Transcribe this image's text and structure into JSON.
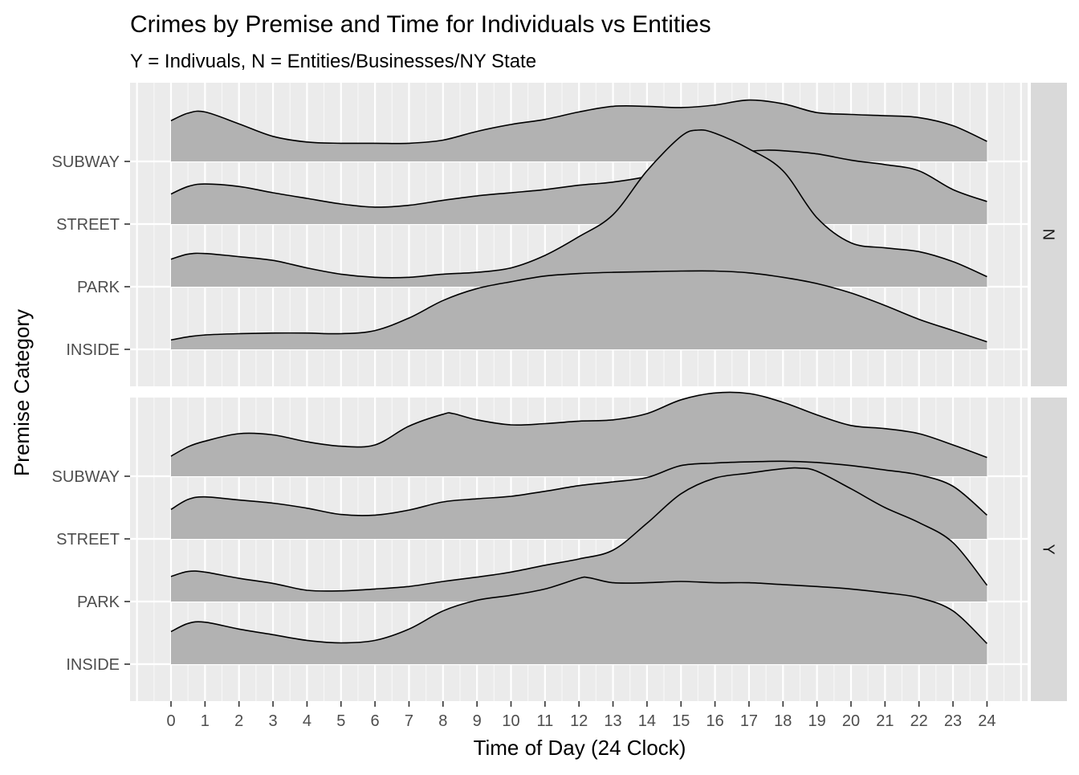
{
  "chart_data": {
    "type": "area",
    "subtype": "ridgeline",
    "title": "Crimes by Premise and Time for Individuals vs Entities",
    "subtitle": "Y = Indivuals, N = Entities/Businesses/NY State",
    "xlabel": "Time of Day (24 Clock)",
    "ylabel": "Premise Category",
    "xlim": [
      0,
      24
    ],
    "x_ticks": [
      0,
      1,
      2,
      3,
      4,
      5,
      6,
      7,
      8,
      9,
      10,
      11,
      12,
      13,
      14,
      15,
      16,
      17,
      18,
      19,
      20,
      21,
      22,
      23,
      24
    ],
    "categories": [
      "INSIDE",
      "PARK",
      "STREET",
      "SUBWAY"
    ],
    "fill_color": "#b2b2b2",
    "panel_background": "#ebebeb",
    "strip_background": "#d9d9d9",
    "grid": true,
    "legend": "none",
    "facets": [
      {
        "label": "N",
        "series": [
          {
            "name": "INSIDE",
            "x": [
              0,
              0.5,
              1,
              2,
              3,
              4,
              5,
              6,
              7,
              8,
              9,
              10,
              11,
              12,
              13,
              14,
              15,
              16,
              17,
              18,
              19,
              20,
              21,
              22,
              23,
              24
            ],
            "y": [
              0.15,
              0.2,
              0.23,
              0.25,
              0.26,
              0.26,
              0.25,
              0.3,
              0.5,
              0.78,
              0.97,
              1.08,
              1.17,
              1.21,
              1.23,
              1.24,
              1.25,
              1.25,
              1.22,
              1.15,
              1.05,
              0.9,
              0.7,
              0.48,
              0.3,
              0.12
            ]
          },
          {
            "name": "PARK",
            "x": [
              0,
              0.5,
              1,
              2,
              3,
              4,
              5,
              6,
              7,
              8,
              9,
              10,
              11,
              12,
              13,
              14,
              15,
              15.5,
              16,
              17,
              18,
              19,
              20,
              21,
              22,
              23,
              24
            ],
            "y": [
              0.44,
              0.52,
              0.53,
              0.48,
              0.42,
              0.3,
              0.2,
              0.15,
              0.15,
              0.2,
              0.23,
              0.3,
              0.5,
              0.8,
              1.15,
              1.85,
              2.4,
              2.5,
              2.45,
              2.2,
              1.85,
              1.1,
              0.7,
              0.62,
              0.56,
              0.4,
              0.16
            ]
          },
          {
            "name": "STREET",
            "x": [
              0,
              0.5,
              1,
              2,
              3,
              4,
              5,
              6,
              7,
              8,
              9,
              10,
              11,
              12,
              13,
              14,
              15,
              16,
              17,
              17.5,
              18,
              19,
              20,
              21,
              22,
              23,
              24
            ],
            "y": [
              0.48,
              0.6,
              0.64,
              0.6,
              0.5,
              0.41,
              0.32,
              0.27,
              0.3,
              0.38,
              0.45,
              0.5,
              0.55,
              0.62,
              0.67,
              0.76,
              0.92,
              1.08,
              1.16,
              1.18,
              1.17,
              1.12,
              1.02,
              0.95,
              0.85,
              0.55,
              0.36
            ]
          },
          {
            "name": "SUBWAY",
            "x": [
              0,
              0.5,
              1,
              2,
              3,
              4,
              5,
              6,
              7,
              8,
              9,
              10,
              11,
              12,
              13,
              14,
              15,
              16,
              17,
              18,
              19,
              20,
              21,
              22,
              23,
              24
            ],
            "y": [
              0.65,
              0.77,
              0.79,
              0.6,
              0.4,
              0.31,
              0.29,
              0.29,
              0.29,
              0.34,
              0.48,
              0.59,
              0.67,
              0.79,
              0.88,
              0.88,
              0.86,
              0.9,
              0.98,
              0.92,
              0.78,
              0.75,
              0.73,
              0.7,
              0.57,
              0.32
            ]
          }
        ]
      },
      {
        "label": "Y",
        "series": [
          {
            "name": "INSIDE",
            "x": [
              0,
              0.5,
              1,
              2,
              3,
              4,
              5,
              6,
              7,
              8,
              9,
              10,
              11,
              12,
              12.3,
              13,
              14,
              15,
              16,
              17,
              18,
              19,
              20,
              21,
              22,
              23,
              24
            ],
            "y": [
              0.52,
              0.65,
              0.67,
              0.56,
              0.47,
              0.38,
              0.34,
              0.38,
              0.56,
              0.85,
              1.02,
              1.1,
              1.2,
              1.37,
              1.38,
              1.3,
              1.3,
              1.32,
              1.3,
              1.3,
              1.27,
              1.24,
              1.2,
              1.14,
              1.06,
              0.85,
              0.33
            ]
          },
          {
            "name": "PARK",
            "x": [
              0,
              0.5,
              1,
              2,
              3,
              4,
              5,
              6,
              7,
              8,
              9,
              10,
              11,
              12,
              13,
              14,
              15,
              16,
              17,
              18,
              18.5,
              19,
              20,
              21,
              22,
              23,
              24
            ],
            "y": [
              0.4,
              0.48,
              0.47,
              0.37,
              0.29,
              0.18,
              0.17,
              0.2,
              0.24,
              0.32,
              0.39,
              0.47,
              0.58,
              0.68,
              0.82,
              1.25,
              1.72,
              1.97,
              2.05,
              2.12,
              2.13,
              2.08,
              1.8,
              1.5,
              1.26,
              0.94,
              0.26
            ]
          },
          {
            "name": "STREET",
            "x": [
              0,
              0.5,
              1,
              2,
              3,
              4,
              5,
              6,
              7,
              8,
              9,
              10,
              11,
              12,
              13,
              14,
              15,
              16,
              17,
              18,
              19,
              20,
              21,
              22,
              23,
              24
            ],
            "y": [
              0.47,
              0.63,
              0.67,
              0.62,
              0.57,
              0.49,
              0.39,
              0.38,
              0.46,
              0.59,
              0.64,
              0.68,
              0.76,
              0.85,
              0.91,
              0.98,
              1.17,
              1.21,
              1.23,
              1.24,
              1.22,
              1.17,
              1.1,
              1.02,
              0.84,
              0.38
            ]
          },
          {
            "name": "SUBWAY",
            "x": [
              0,
              0.5,
              1,
              2,
              3,
              4,
              5,
              6,
              7,
              8,
              8.3,
              9,
              10,
              11,
              12,
              13,
              14,
              15,
              16,
              17,
              18,
              19,
              20,
              21,
              22,
              23,
              24
            ],
            "y": [
              0.32,
              0.47,
              0.56,
              0.68,
              0.66,
              0.55,
              0.48,
              0.5,
              0.8,
              0.99,
              1.0,
              0.9,
              0.82,
              0.84,
              0.88,
              0.9,
              1.0,
              1.22,
              1.33,
              1.32,
              1.18,
              0.98,
              0.81,
              0.76,
              0.68,
              0.5,
              0.3
            ]
          }
        ]
      }
    ]
  }
}
